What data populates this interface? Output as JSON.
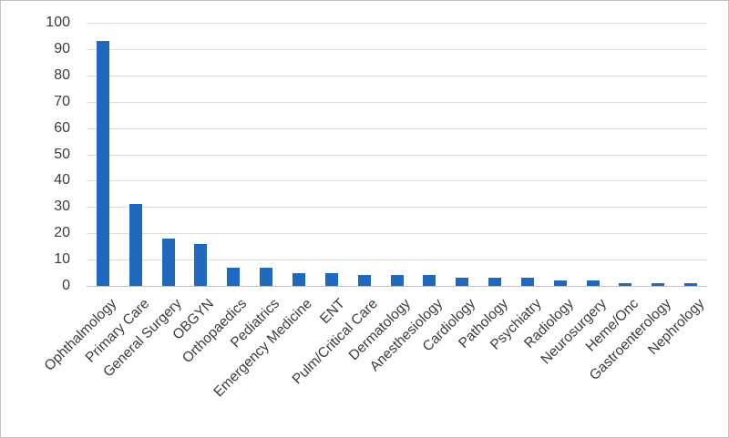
{
  "figure": {
    "background": "#ffffff",
    "border_color": "#c2c0c0"
  },
  "chart_data": {
    "type": "bar",
    "title": "",
    "xlabel": "",
    "ylabel": "",
    "categories": [
      "Ophthalmology",
      "Primary Care",
      "General Surgery",
      "OBGYN",
      "Orthopaedics",
      "Pediatrics",
      "Emergency Medicine",
      "ENT",
      "Pulm/Critical Care",
      "Dermatology",
      "Anesthesiology",
      "Cardiology",
      "Pathology",
      "Psychiatry",
      "Radiology",
      "Neurosurgery",
      "Heme/Onc",
      "Gastroenterology",
      "Nephrology"
    ],
    "values": [
      93,
      31,
      18,
      16,
      7,
      7,
      5,
      5,
      4,
      4,
      4,
      3,
      3,
      3,
      2,
      2,
      1,
      1,
      1
    ],
    "ylim": [
      0,
      100
    ],
    "yticks": [
      0,
      10,
      20,
      30,
      40,
      50,
      60,
      70,
      80,
      90,
      100
    ],
    "grid": "horizontal-only",
    "legend_position": "none",
    "x_label_rotation_deg": -45,
    "colors": {
      "bar": "#1E68BE",
      "gridline": "#DBDBDB",
      "axis_line": "#C4C4C4",
      "tick_text": "#3B3B3B"
    }
  }
}
